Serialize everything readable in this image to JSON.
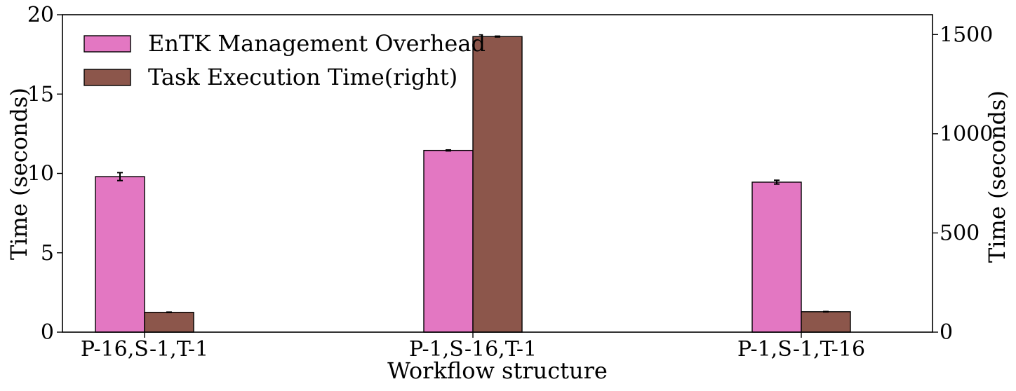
{
  "chart_data": {
    "type": "bar",
    "title": "",
    "xlabel": "Workflow structure",
    "ylabel": "Time (seconds)",
    "y2label": "Time (seconds)",
    "categories": [
      "P-16,S-1,T-1",
      "P-1,S-16,T-1",
      "P-1,S-1,T-16"
    ],
    "ylim": [
      0,
      20
    ],
    "y2lim": [
      0,
      1600
    ],
    "yticks": [
      0,
      5,
      10,
      15,
      20
    ],
    "y2ticks": [
      0,
      500,
      1000,
      1500
    ],
    "legend_position": "top-left",
    "grid": false,
    "series": [
      {
        "name": "EnTK Management Overhead",
        "axis": "left",
        "color": "#e377c2",
        "values": [
          9.8,
          11.45,
          9.45
        ],
        "errors": [
          0.25,
          0.03,
          0.12
        ]
      },
      {
        "name": "Task Execution Time(right)",
        "axis": "right",
        "color": "#8c564b",
        "values": [
          100,
          1490,
          103
        ],
        "errors": [
          1,
          2,
          1
        ]
      }
    ]
  }
}
